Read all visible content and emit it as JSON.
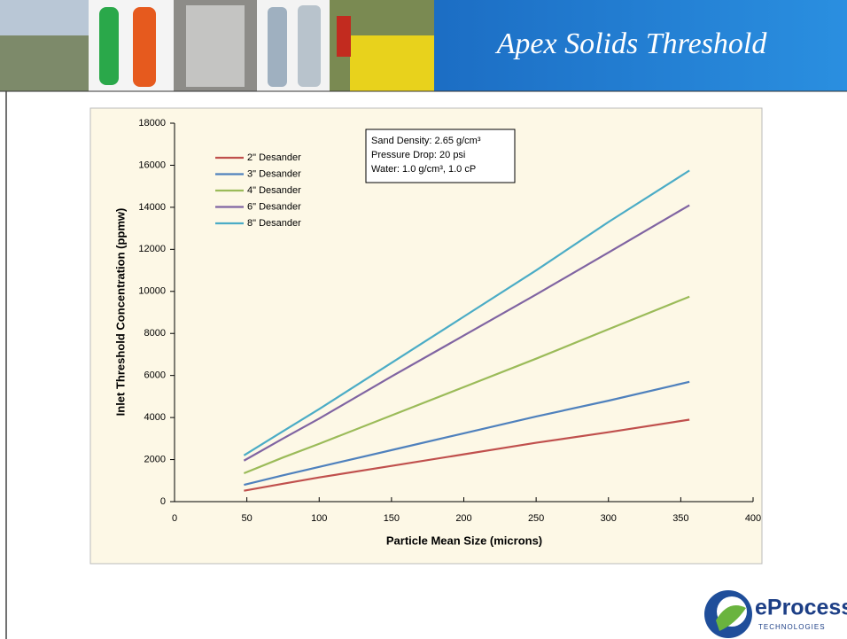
{
  "slide": {
    "title": "Apex Solids Threshold",
    "logo": {
      "name": "eProcess",
      "tagline": "TECHNOLOGIES"
    }
  },
  "chart_data": {
    "type": "line",
    "x_label": "Particle Mean Size (microns)",
    "y_label": "Inlet Threshold Concentration (ppmw)",
    "x": [
      48,
      75,
      100,
      150,
      200,
      250,
      300,
      356
    ],
    "series": [
      {
        "name": "2\" Desander",
        "color": "#c0504d",
        "values": [
          520,
          850,
          1150,
          1700,
          2250,
          2800,
          3300,
          3900
        ]
      },
      {
        "name": "3\" Desander",
        "color": "#4f81bd",
        "values": [
          800,
          1250,
          1650,
          2450,
          3250,
          4050,
          4800,
          5700
        ]
      },
      {
        "name": "4\" Desander",
        "color": "#9bbb59",
        "values": [
          1350,
          2100,
          2750,
          4100,
          5450,
          6800,
          8200,
          9750
        ]
      },
      {
        "name": "6\" Desander",
        "color": "#8064a2",
        "values": [
          1950,
          3000,
          3950,
          5950,
          7900,
          9850,
          11850,
          14100
        ]
      },
      {
        "name": "8\" Desander",
        "color": "#4bacc6",
        "values": [
          2200,
          3350,
          4400,
          6600,
          8800,
          11000,
          13300,
          15750
        ]
      }
    ],
    "annotations": [
      "Sand Density: 2.65 g/cm³",
      "Pressure Drop: 20 psi",
      "Water: 1.0 g/cm³, 1.0 cP"
    ],
    "xlim": [
      0,
      400
    ],
    "xticks": [
      0,
      50,
      100,
      150,
      200,
      250,
      300,
      350,
      400
    ],
    "ylim": [
      0,
      18000
    ],
    "yticks": [
      0,
      2000,
      4000,
      6000,
      8000,
      10000,
      12000,
      14000,
      16000,
      18000
    ],
    "legend": "upper left",
    "grid": false
  }
}
